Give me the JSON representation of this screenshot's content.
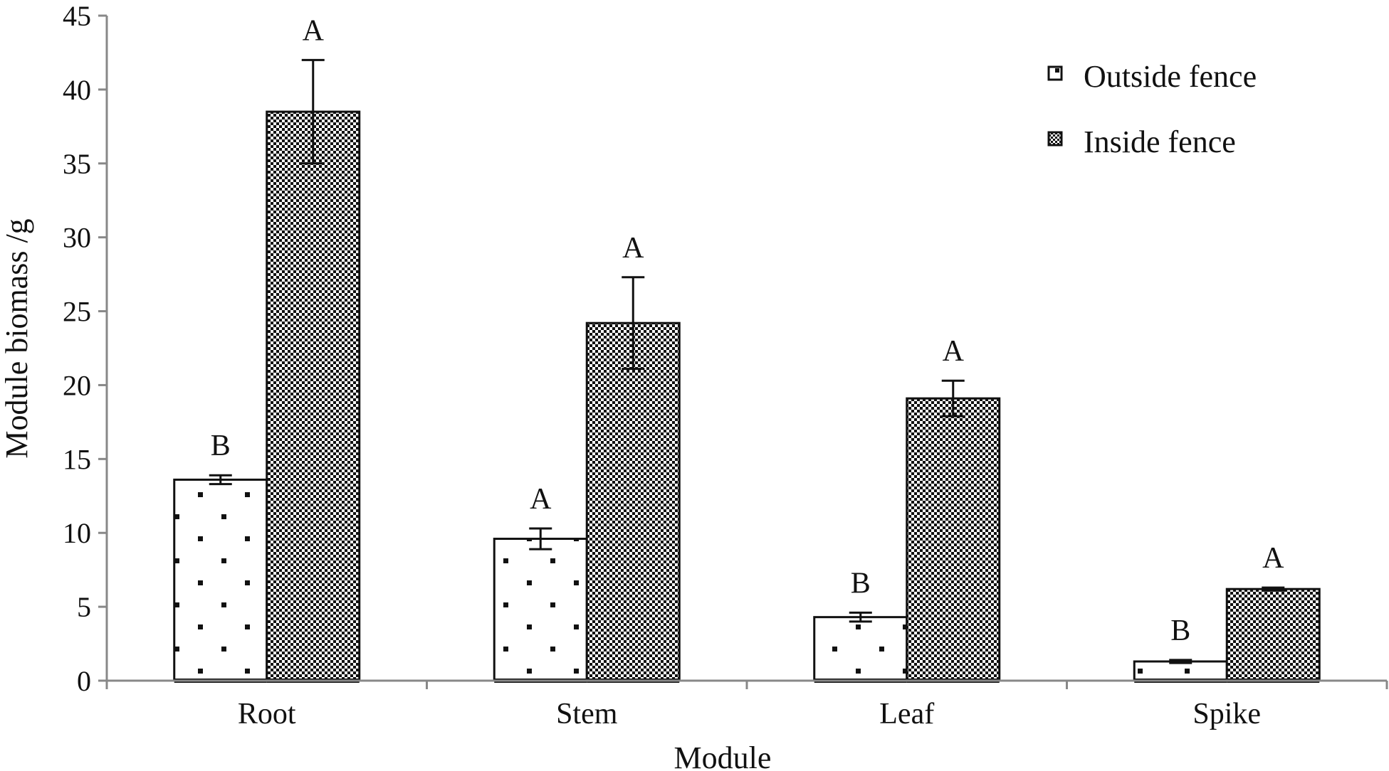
{
  "chart_data": {
    "type": "bar",
    "xlabel": "Module",
    "ylabel": "Module biomass /g",
    "ylim": [
      0,
      45
    ],
    "yticks": [
      0,
      5,
      10,
      15,
      20,
      25,
      30,
      35,
      40,
      45
    ],
    "categories": [
      "Root",
      "Stem",
      "Leaf",
      "Spike"
    ],
    "series": [
      {
        "name": "Outside fence",
        "pattern": "dots",
        "values": [
          13.6,
          9.6,
          4.3,
          1.3
        ],
        "errors": [
          0.3,
          0.7,
          0.3,
          0.1
        ],
        "significance": [
          "B",
          "A",
          "B",
          "B"
        ]
      },
      {
        "name": "Inside fence",
        "pattern": "checker",
        "values": [
          38.5,
          24.2,
          19.1,
          6.2
        ],
        "errors": [
          3.5,
          3.1,
          1.2,
          0.1
        ],
        "significance": [
          "A",
          "A",
          "A",
          "A"
        ]
      }
    ],
    "grid": false,
    "legend_position": "top-right"
  },
  "colors": {
    "ink": "#111111",
    "axis": "#888888",
    "background": "#ffffff"
  }
}
